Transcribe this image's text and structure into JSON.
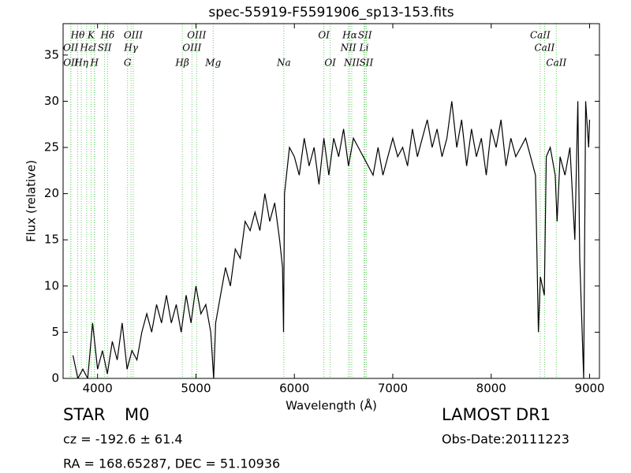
{
  "chart_data": {
    "type": "line",
    "title": "spec-55919-F5591906_sp13-153.fits",
    "x_label": "Wavelength (Å)",
    "y_label": "Flux (relative)",
    "color": "#000000",
    "line_color": "#66cc66",
    "xlim": [
      3650,
      9100
    ],
    "ylim": [
      0,
      38.4
    ],
    "xticks": [
      4000,
      5000,
      6000,
      7000,
      8000,
      9000
    ],
    "yticks": [
      0,
      5,
      10,
      15,
      20,
      25,
      30,
      35
    ],
    "x": [
      3750,
      3800,
      3850,
      3900,
      3950,
      4000,
      4050,
      4100,
      4150,
      4200,
      4250,
      4300,
      4350,
      4400,
      4450,
      4500,
      4550,
      4600,
      4650,
      4700,
      4750,
      4800,
      4850,
      4900,
      4950,
      5000,
      5050,
      5100,
      5150,
      5180,
      5200,
      5250,
      5300,
      5350,
      5400,
      5450,
      5500,
      5550,
      5600,
      5650,
      5700,
      5750,
      5800,
      5850,
      5880,
      5890,
      5900,
      5950,
      6000,
      6050,
      6100,
      6150,
      6200,
      6250,
      6300,
      6350,
      6400,
      6450,
      6500,
      6550,
      6600,
      6650,
      6700,
      6750,
      6800,
      6850,
      6900,
      6950,
      7000,
      7050,
      7100,
      7150,
      7200,
      7250,
      7300,
      7350,
      7400,
      7450,
      7500,
      7550,
      7600,
      7650,
      7700,
      7750,
      7800,
      7850,
      7900,
      7950,
      8000,
      8050,
      8100,
      8150,
      8200,
      8250,
      8300,
      8350,
      8400,
      8450,
      8480,
      8500,
      8540,
      8560,
      8600,
      8650,
      8670,
      8700,
      8750,
      8800,
      8850,
      8880,
      8900,
      8940,
      8960,
      8990,
      9000
    ],
    "values": [
      2.5,
      0,
      1,
      0,
      6,
      1,
      3,
      0.5,
      4,
      2,
      6,
      1,
      3,
      2,
      5,
      7,
      5,
      8,
      6,
      9,
      6,
      8,
      5,
      9,
      6,
      10,
      7,
      8,
      5,
      0,
      6,
      9,
      12,
      10,
      14,
      13,
      17,
      16,
      18,
      16,
      20,
      17,
      19,
      15,
      12,
      5,
      20,
      25,
      24,
      22,
      26,
      23,
      25,
      21,
      26,
      22,
      26,
      24,
      27,
      23,
      26,
      25,
      24,
      23,
      22,
      25,
      22,
      24,
      26,
      24,
      25,
      23,
      27,
      24,
      26,
      28,
      25,
      27,
      24,
      26,
      30,
      25,
      28,
      23,
      27,
      24,
      26,
      22,
      27,
      25,
      28,
      23,
      26,
      24,
      25,
      26,
      24,
      22,
      5,
      11,
      9,
      24,
      25,
      22,
      17,
      24,
      22,
      25,
      15,
      30,
      13,
      0,
      30,
      25,
      28
    ],
    "spectral_lines": [
      [
        {
          "x": 3798,
          "label": "Hθ"
        },
        {
          "x": 3934,
          "label": "K"
        },
        {
          "x": 4102,
          "label": "Hδ"
        },
        {
          "x": 4363,
          "label": "OIII"
        },
        {
          "x": 5007,
          "label": "OIII"
        },
        {
          "x": 6300,
          "label": "OI"
        },
        {
          "x": 6563,
          "label": "Hα"
        },
        {
          "x": 6717,
          "label": "SII"
        },
        {
          "x": 8498,
          "label": "CaII"
        }
      ],
      [
        {
          "x": 3727,
          "label": "OII"
        },
        {
          "x": 3889,
          "label": "Hε"
        },
        {
          "x": 3970,
          "label": "I"
        },
        {
          "x": 4072,
          "label": "SII"
        },
        {
          "x": 4340,
          "label": "Hγ"
        },
        {
          "x": 4959,
          "label": "OIII"
        },
        {
          "x": 6548,
          "label": "NII"
        },
        {
          "x": 6708,
          "label": "Li"
        },
        {
          "x": 8542,
          "label": "CaII"
        }
      ],
      [
        {
          "x": 3729,
          "label": "OII"
        },
        {
          "x": 3835,
          "label": "Hη"
        },
        {
          "x": 3968,
          "label": "H"
        },
        {
          "x": 4305,
          "label": "G"
        },
        {
          "x": 4861,
          "label": "Hβ"
        },
        {
          "x": 5175,
          "label": "Mg"
        },
        {
          "x": 5893,
          "label": "Na"
        },
        {
          "x": 6364,
          "label": "OI"
        },
        {
          "x": 6583,
          "label": "NII"
        },
        {
          "x": 6731,
          "label": "SII"
        },
        {
          "x": 8662,
          "label": "CaII"
        }
      ]
    ],
    "object_class": "STAR",
    "subclass": "M0",
    "survey": "LAMOST DR1",
    "redshift_text": "cz = -192.6 ± 61.4",
    "obs_date": "Obs-Date:20111223",
    "coordinates": "RA = 168.65287, DEC = 51.10936"
  }
}
